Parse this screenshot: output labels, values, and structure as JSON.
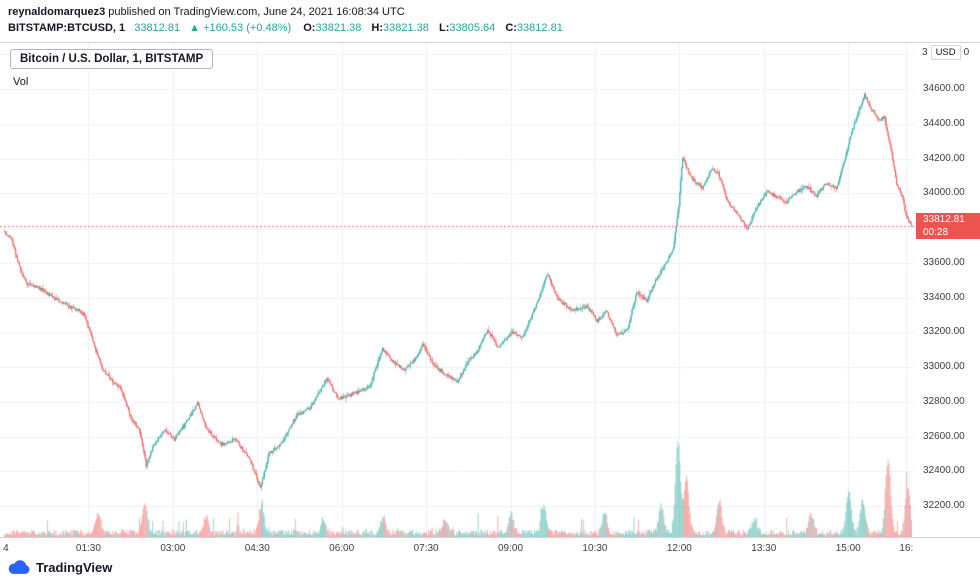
{
  "header": {
    "author": "reynaldomarquez3",
    "published": " published on TradingView.com, June 24, 2021 16:08:34 UTC",
    "symbol_interval": "BITSTAMP:BTCUSD, 1",
    "last_price": "33812.81",
    "change": "▲ +160.53 (+0.48%)",
    "o_label": "O:",
    "o_value": "33821.38",
    "h_label": "H:",
    "h_value": "33821.38",
    "l_label": "L:",
    "l_value": "33805.64",
    "c_label": "C:",
    "c_value": "33812.81"
  },
  "legend": {
    "title": "Bitcoin / U.S. Dollar, 1, BITSTAMP",
    "vol_label": "Vol"
  },
  "axis": {
    "unit": "USD",
    "partial_left": "3",
    "partial_right": "0",
    "price_tag": "33812.81",
    "countdown": "00:28"
  },
  "watermark": {
    "text": "TradingView"
  },
  "colors": {
    "up": "#26a69a",
    "down": "#ef5350",
    "price_tag_bg": "#ef5350",
    "logo_blue": "#2962ff",
    "border": "#d1d4dc"
  },
  "chart_data": {
    "type": "candlestick",
    "title": "Bitcoin / U.S. Dollar, 1, BITSTAMP",
    "symbol": "BITSTAMP:BTCUSD",
    "interval_minutes": 1,
    "session_date": "June 24, 2021",
    "minutes_total": 968,
    "ylim": [
      32022,
      34865
    ],
    "grid_step": 200,
    "y_ticks": [
      "34600.00",
      "34400.00",
      "34200.00",
      "34000.00",
      "33600.00",
      "33400.00",
      "33200.00",
      "33000.00",
      "32800.00",
      "32600.00",
      "32400.00",
      "32200.00"
    ],
    "x_ticks": [
      {
        "label": "4",
        "min": 2
      },
      {
        "label": "01:30",
        "min": 90
      },
      {
        "label": "03:00",
        "min": 180
      },
      {
        "label": "04:30",
        "min": 270
      },
      {
        "label": "06:00",
        "min": 360
      },
      {
        "label": "07:30",
        "min": 450
      },
      {
        "label": "09:00",
        "min": 540
      },
      {
        "label": "10:30",
        "min": 630
      },
      {
        "label": "12:00",
        "min": 720
      },
      {
        "label": "13:30",
        "min": 810
      },
      {
        "label": "15:00",
        "min": 900
      },
      {
        "label": "16:",
        "min": 962
      }
    ],
    "last_price": 33812.81,
    "countdown": "00:28",
    "open": 33821.38,
    "high": 33821.38,
    "low": 33805.64,
    "close": 33812.81,
    "up_color": "#26a69a",
    "down_color": "#ef5350",
    "seed": 42,
    "price_keypoints": [
      [
        0,
        33780
      ],
      [
        8,
        33745
      ],
      [
        18,
        33560
      ],
      [
        25,
        33480
      ],
      [
        40,
        33450
      ],
      [
        55,
        33395
      ],
      [
        70,
        33350
      ],
      [
        85,
        33310
      ],
      [
        95,
        33160
      ],
      [
        105,
        32990
      ],
      [
        115,
        32930
      ],
      [
        126,
        32870
      ],
      [
        136,
        32700
      ],
      [
        145,
        32640
      ],
      [
        152,
        32430
      ],
      [
        160,
        32550
      ],
      [
        172,
        32645
      ],
      [
        182,
        32585
      ],
      [
        192,
        32660
      ],
      [
        207,
        32790
      ],
      [
        216,
        32645
      ],
      [
        232,
        32555
      ],
      [
        247,
        32585
      ],
      [
        262,
        32475
      ],
      [
        274,
        32310
      ],
      [
        283,
        32500
      ],
      [
        297,
        32565
      ],
      [
        312,
        32720
      ],
      [
        327,
        32765
      ],
      [
        345,
        32935
      ],
      [
        357,
        32815
      ],
      [
        372,
        32845
      ],
      [
        390,
        32885
      ],
      [
        404,
        33105
      ],
      [
        415,
        33030
      ],
      [
        428,
        32980
      ],
      [
        442,
        33070
      ],
      [
        447,
        33140
      ],
      [
        458,
        33015
      ],
      [
        473,
        32950
      ],
      [
        484,
        32915
      ],
      [
        495,
        33030
      ],
      [
        505,
        33090
      ],
      [
        516,
        33215
      ],
      [
        527,
        33115
      ],
      [
        542,
        33200
      ],
      [
        553,
        33170
      ],
      [
        569,
        33370
      ],
      [
        580,
        33535
      ],
      [
        590,
        33400
      ],
      [
        606,
        33325
      ],
      [
        622,
        33350
      ],
      [
        633,
        33265
      ],
      [
        643,
        33320
      ],
      [
        654,
        33185
      ],
      [
        665,
        33215
      ],
      [
        675,
        33425
      ],
      [
        686,
        33380
      ],
      [
        697,
        33520
      ],
      [
        707,
        33600
      ],
      [
        714,
        33680
      ],
      [
        720,
        33930
      ],
      [
        724,
        34205
      ],
      [
        733,
        34090
      ],
      [
        745,
        34030
      ],
      [
        755,
        34140
      ],
      [
        762,
        34115
      ],
      [
        772,
        33950
      ],
      [
        782,
        33890
      ],
      [
        793,
        33795
      ],
      [
        803,
        33920
      ],
      [
        814,
        34010
      ],
      [
        824,
        33980
      ],
      [
        835,
        33950
      ],
      [
        846,
        34010
      ],
      [
        856,
        34040
      ],
      [
        867,
        33985
      ],
      [
        877,
        34060
      ],
      [
        888,
        34030
      ],
      [
        897,
        34195
      ],
      [
        904,
        34350
      ],
      [
        912,
        34470
      ],
      [
        918,
        34565
      ],
      [
        925,
        34490
      ],
      [
        933,
        34415
      ],
      [
        939,
        34440
      ],
      [
        947,
        34230
      ],
      [
        952,
        34060
      ],
      [
        958,
        33980
      ],
      [
        963,
        33860
      ],
      [
        968,
        33812.81
      ]
    ],
    "volume_spikes": [
      [
        100,
        0.22
      ],
      [
        150,
        0.32
      ],
      [
        215,
        0.18
      ],
      [
        274,
        0.3
      ],
      [
        340,
        0.15
      ],
      [
        404,
        0.18
      ],
      [
        470,
        0.15
      ],
      [
        540,
        0.2
      ],
      [
        575,
        0.3
      ],
      [
        640,
        0.22
      ],
      [
        700,
        0.3
      ],
      [
        718,
        1.0
      ],
      [
        727,
        0.6
      ],
      [
        762,
        0.35
      ],
      [
        800,
        0.15
      ],
      [
        860,
        0.2
      ],
      [
        900,
        0.45
      ],
      [
        915,
        0.35
      ],
      [
        942,
        0.8
      ],
      [
        963,
        0.5
      ]
    ]
  }
}
